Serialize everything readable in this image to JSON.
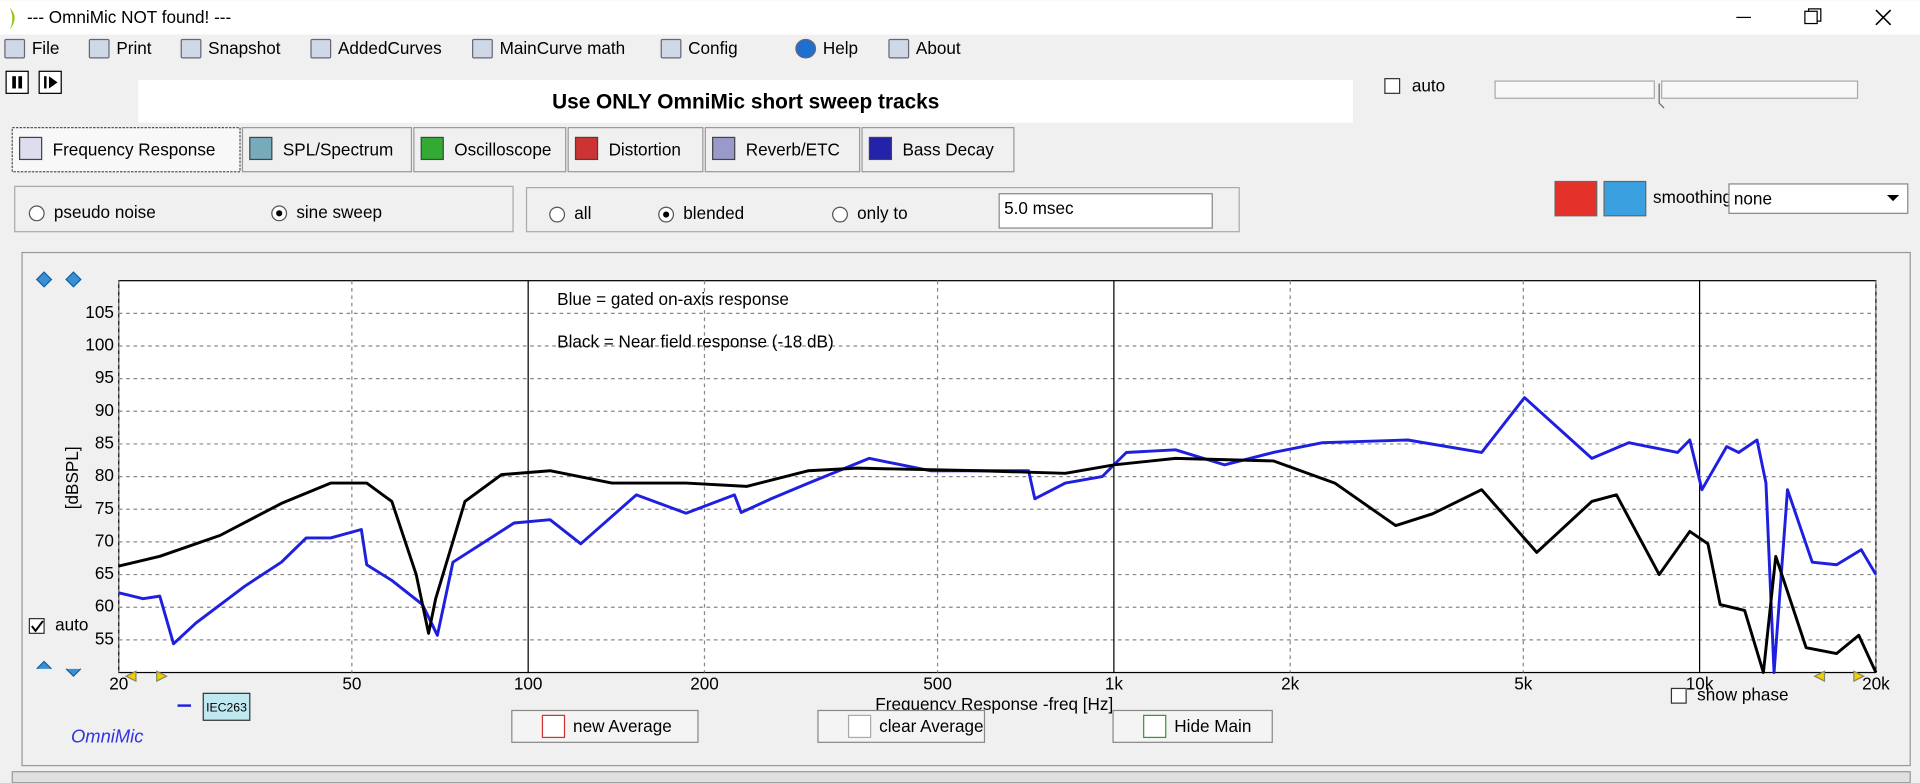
{
  "window": {
    "title": "--- OmniMic NOT found! ---"
  },
  "menu": [
    "File",
    "Print",
    "Snapshot",
    "AddedCurves",
    "MainCurve math",
    "Config",
    "Help",
    "About"
  ],
  "message": "Use ONLY OmniMic short sweep tracks",
  "top_auto": {
    "label": "auto",
    "checked": false
  },
  "tabs": [
    "Frequency Response",
    "SPL/Spectrum",
    "Oscilloscope",
    "Distortion",
    "Reverb/ETC",
    "Bass Decay"
  ],
  "excitation": {
    "options": [
      "pseudo noise",
      "sine sweep"
    ],
    "selected": "sine sweep"
  },
  "gating": {
    "options": [
      "all",
      "blended",
      "only to"
    ],
    "selected": "blended",
    "time": "5.0 msec"
  },
  "smoothing": {
    "label": "smoothing",
    "value": "none"
  },
  "chart_data": {
    "type": "line",
    "annotations": [
      "Blue = gated on-axis response",
      "Black = Near field response (-18 dB)"
    ],
    "x_label": "Frequency Response -freq [Hz]",
    "y_label": "[dBSPL]",
    "log_x": true,
    "grid": true,
    "xlim": [
      20,
      20000
    ],
    "xticks": [
      20,
      50,
      100,
      200,
      500,
      {
        "value": 1000,
        "label": "1k"
      },
      {
        "value": 2000,
        "label": "2k"
      },
      {
        "value": 5000,
        "label": "5k"
      },
      {
        "value": 10000,
        "label": "10k"
      },
      {
        "value": 20000,
        "label": "20k"
      }
    ],
    "ylim": [
      50,
      110
    ],
    "yticks": [
      55,
      60,
      65,
      70,
      75,
      80,
      85,
      90,
      95,
      100,
      105
    ],
    "series": [
      {
        "color": "#1f1fe0",
        "x": [
          20,
          22,
          23.5,
          24.8,
          27.1,
          32.8,
          37.9,
          41.8,
          46,
          51.9,
          53,
          58.5,
          66,
          70,
          74.4,
          94.6,
          109,
          123,
          153,
          186,
          225,
          231,
          260,
          301,
          382,
          486,
          715,
          733,
          826,
          955,
          1050,
          1274,
          1546,
          1872,
          2270,
          3176,
          4245,
          5024,
          6546,
          7570,
          9170,
          9620,
          10090,
          11120,
          11660,
          12530,
          12980,
          13400,
          14130,
          15570,
          17140,
          18880,
          20000
        ],
        "values": [
          62.2,
          61.3,
          61.7,
          54.4,
          57.6,
          63.2,
          66.9,
          70.6,
          70.6,
          71.9,
          66.5,
          64.1,
          60.4,
          55.7,
          66.9,
          72.9,
          73.4,
          69.7,
          77.2,
          74.4,
          77.2,
          74.5,
          76.6,
          79,
          82.8,
          80.9,
          80.9,
          76.6,
          79,
          80,
          83.7,
          84.1,
          81.8,
          83.7,
          85.2,
          85.6,
          83.7,
          92.1,
          82.8,
          85.2,
          83.7,
          85.6,
          78,
          84.6,
          83.7,
          85.6,
          79,
          50,
          78,
          66.9,
          66.5,
          68.8,
          65
        ]
      },
      {
        "color": "#000000",
        "x": [
          20,
          23.5,
          29.8,
          37.9,
          46,
          53,
          58.5,
          64.4,
          67.6,
          69.5,
          78,
          90,
          109,
          139,
          186,
          236,
          301,
          364,
          590,
          826,
          1002,
          1274,
          1872,
          2383,
          3028,
          3500,
          4245,
          5272,
          6546,
          7212,
          8531,
          9620,
          10330,
          10840,
          11940,
          12850,
          13490,
          15200,
          17140,
          18700,
          20000
        ],
        "values": [
          66.3,
          67.8,
          71,
          75.9,
          79,
          79,
          76.2,
          65,
          56,
          61.3,
          76.2,
          80.3,
          80.9,
          79,
          79,
          78.5,
          80.9,
          81.3,
          80.9,
          80.5,
          81.8,
          82.8,
          82.4,
          79,
          72.5,
          74.3,
          78,
          68.4,
          76.2,
          77.2,
          65,
          71.6,
          69.7,
          60.4,
          59.5,
          50,
          67.8,
          53.8,
          52.9,
          55.7,
          50
        ]
      }
    ],
    "auto": {
      "label": "auto",
      "checked": true
    },
    "show_phase": {
      "label": "show phase",
      "checked": false
    },
    "curve_tag": "IEC263",
    "brand": "OmniMic",
    "buttons": [
      "new Average",
      "clear Average",
      "Hide Main"
    ]
  }
}
